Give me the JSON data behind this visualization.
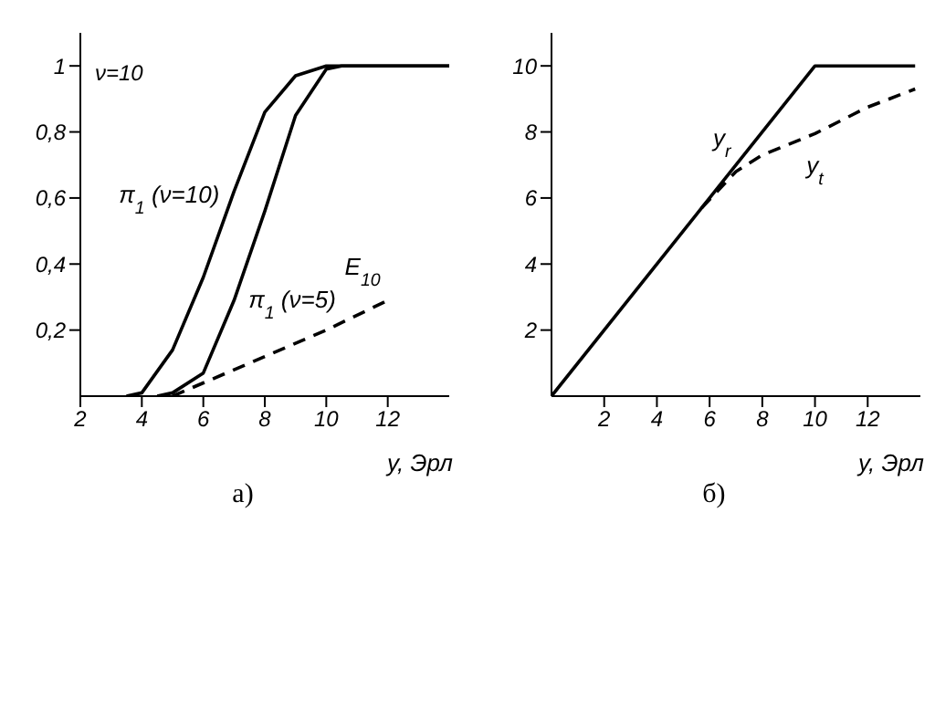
{
  "chart_data": [
    {
      "type": "line",
      "title": "а)",
      "xlabel": "y, Эрл",
      "xlim": [
        2,
        14
      ],
      "xticks": [
        2,
        4,
        6,
        8,
        10,
        12
      ],
      "ylim": [
        0,
        1.1
      ],
      "yticks": [
        {
          "value": 0.2,
          "label": "0,2"
        },
        {
          "value": 0.4,
          "label": "0,4"
        },
        {
          "value": 0.6,
          "label": "0,6"
        },
        {
          "value": 0.8,
          "label": "0,8"
        },
        1
      ],
      "marker": "none",
      "annotations": [
        "ν=10"
      ],
      "series": [
        {
          "name": "π$_{1}$ (ν=10)",
          "color": "#000000",
          "line_style": "solid",
          "x": [
            3.5,
            4,
            5,
            6,
            7,
            8,
            9,
            10,
            14
          ],
          "values": [
            0,
            0.01,
            0.14,
            0.36,
            0.62,
            0.86,
            0.97,
            1,
            1
          ]
        },
        {
          "name": "π$_{1}$ (ν=5)",
          "color": "#000000",
          "line_style": "solid",
          "x": [
            4.5,
            5,
            6,
            7,
            8,
            9,
            10,
            10.5,
            14
          ],
          "values": [
            0,
            0.01,
            0.07,
            0.29,
            0.56,
            0.85,
            0.99,
            1,
            1
          ]
        },
        {
          "name": "E$_{10}$",
          "color": "#000000",
          "line_style": "dashed",
          "x": [
            5,
            6,
            8,
            10,
            12
          ],
          "values": [
            0,
            0.04,
            0.12,
            0.2,
            0.29
          ]
        }
      ]
    },
    {
      "type": "line",
      "title": "б)",
      "xlabel": "y, Эрл",
      "xlim": [
        0,
        14
      ],
      "xticks": [
        2,
        4,
        6,
        8,
        10,
        12
      ],
      "ylim": [
        0,
        11
      ],
      "yticks": [
        2,
        4,
        6,
        8,
        10
      ],
      "marker": "none",
      "series": [
        {
          "name": "y$_{r}$",
          "color": "#000000",
          "line_style": "solid",
          "x": [
            0,
            10,
            13.8
          ],
          "values": [
            0,
            10,
            10
          ]
        },
        {
          "name": "y$_{t}$",
          "color": "#000000",
          "line_style": "dashed",
          "x": [
            5.7,
            7,
            8,
            10,
            12,
            13.8
          ],
          "values": [
            5.7,
            6.8,
            7.3,
            7.95,
            8.75,
            9.3
          ]
        }
      ]
    }
  ]
}
